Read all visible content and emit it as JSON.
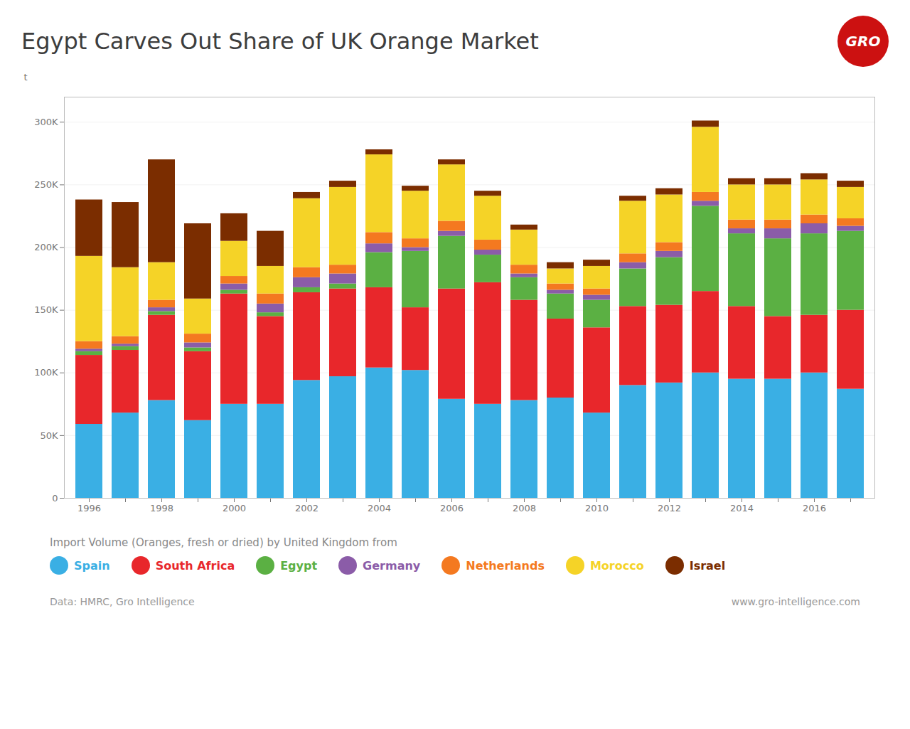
{
  "chart_data": {
    "type": "bar",
    "stacked": true,
    "title": "Egypt Carves Out Share of UK Orange Market",
    "ylabel": "t",
    "legend_title": "Import Volume (Oranges, fresh or dried) by United Kingdom from",
    "annotations": [
      "GRO",
      "Data: HMRC, Gro Intelligence",
      "www.gro-intelligence.com"
    ],
    "categories": [
      "1996",
      null,
      "1998",
      null,
      "2000",
      null,
      "2002",
      null,
      "2004",
      null,
      "2006",
      null,
      "2008",
      null,
      "2010",
      null,
      "2012",
      null,
      "2014",
      null,
      "2016",
      null
    ],
    "series": [
      {
        "name": "Spain",
        "color": "#3AAFE4",
        "values": [
          59000,
          68000,
          78000,
          62000,
          75000,
          75000,
          94000,
          97000,
          104000,
          102000,
          79000,
          75000,
          78000,
          80000,
          68000,
          90000,
          92000,
          100000,
          95000,
          95000,
          100000,
          87000
        ]
      },
      {
        "name": "South Africa",
        "color": "#E8272B",
        "values": [
          55000,
          50000,
          68000,
          55000,
          88000,
          70000,
          70000,
          70000,
          64000,
          50000,
          88000,
          97000,
          80000,
          63000,
          68000,
          63000,
          62000,
          65000,
          58000,
          50000,
          46000,
          63000
        ]
      },
      {
        "name": "Egypt",
        "color": "#5BB043",
        "values": [
          3000,
          3000,
          3000,
          3000,
          3000,
          3000,
          4000,
          4000,
          28000,
          45000,
          42000,
          22000,
          18000,
          20000,
          22000,
          30000,
          38000,
          68000,
          58000,
          62000,
          65000,
          63000
        ]
      },
      {
        "name": "Germany",
        "color": "#8B5CA8",
        "values": [
          2000,
          2000,
          3000,
          4000,
          5000,
          7000,
          8000,
          8000,
          7000,
          3000,
          4000,
          4000,
          3000,
          3000,
          4000,
          5000,
          5000,
          4000,
          4000,
          8000,
          8000,
          4000
        ]
      },
      {
        "name": "Netherlands",
        "color": "#F47920",
        "values": [
          6000,
          6000,
          6000,
          7000,
          6000,
          8000,
          8000,
          7000,
          9000,
          7000,
          8000,
          8000,
          7000,
          5000,
          5000,
          7000,
          7000,
          7000,
          7000,
          7000,
          7000,
          6000
        ]
      },
      {
        "name": "Morocco",
        "color": "#F5D327",
        "values": [
          68000,
          55000,
          30000,
          28000,
          28000,
          22000,
          55000,
          62000,
          62000,
          38000,
          45000,
          35000,
          28000,
          12000,
          18000,
          42000,
          38000,
          52000,
          28000,
          28000,
          28000,
          25000
        ]
      },
      {
        "name": "Israel",
        "color": "#7B2D00",
        "values": [
          45000,
          52000,
          82000,
          60000,
          22000,
          28000,
          5000,
          5000,
          4000,
          4000,
          4000,
          4000,
          4000,
          5000,
          5000,
          4000,
          5000,
          5000,
          5000,
          5000,
          5000,
          5000
        ]
      }
    ],
    "ylim": [
      0,
      320000
    ],
    "yticks": [
      0,
      {
        "value": 50000,
        "label": "50K"
      },
      {
        "value": 100000,
        "label": "100K"
      },
      {
        "value": 150000,
        "label": "150K"
      },
      {
        "value": 200000,
        "label": "200K"
      },
      {
        "value": 250000,
        "label": "250K"
      },
      {
        "value": 300000,
        "label": "300K"
      }
    ],
    "grid": true,
    "legend": "bottom"
  }
}
